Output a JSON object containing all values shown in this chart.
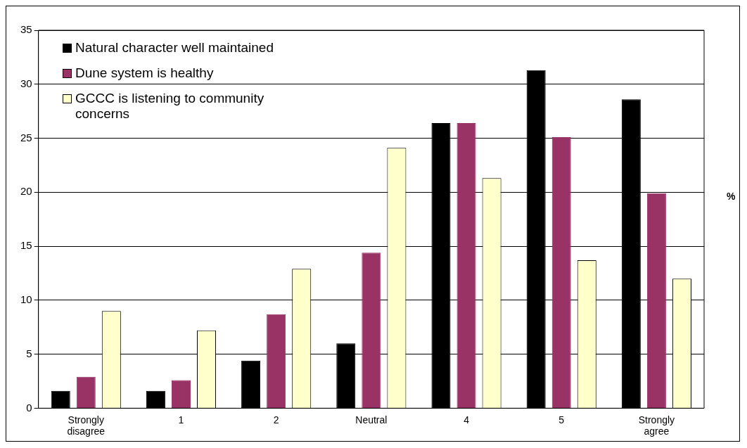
{
  "chart_data": {
    "type": "bar",
    "ylabel": "%",
    "categories": [
      "Strongly disagree",
      "1",
      "2",
      "Neutral",
      "4",
      "5",
      "Strongly agree"
    ],
    "series": [
      {
        "name": "Natural character well maintained",
        "color": "#000000",
        "values": [
          1.6,
          1.6,
          4.4,
          6.0,
          26.4,
          31.3,
          28.6
        ]
      },
      {
        "name": "Dune system is healthy",
        "color": "#993366",
        "values": [
          2.9,
          2.6,
          8.7,
          14.4,
          26.4,
          25.1,
          19.9
        ]
      },
      {
        "name": "GCCC is listening to community concerns",
        "color": "#ffffcc",
        "values": [
          9.0,
          7.2,
          12.9,
          24.1,
          21.3,
          13.7,
          12.0
        ]
      }
    ],
    "ylim": [
      0,
      35
    ],
    "yticks": [
      0,
      5,
      10,
      15,
      20,
      25,
      30,
      35
    ],
    "grid": "y",
    "legend": "top left"
  }
}
